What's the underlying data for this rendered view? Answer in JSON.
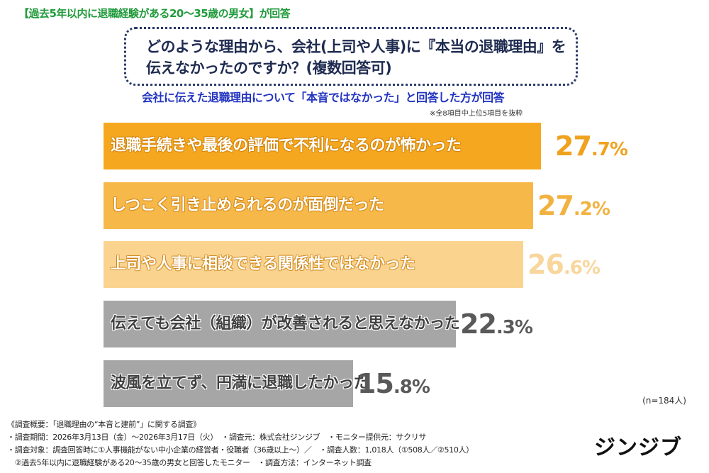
{
  "header_note": "【過去5年以内に退職経験がある20〜35歳の男女】が回答",
  "question": {
    "line1": "どのような理由から、会社(上司や人事)に『本当の退職理由』を",
    "line2": "伝えなかったのですか？(複数回答可)"
  },
  "subtitle": "会社に伝えた退職理由について「本音ではなかった」と回答した方が回答",
  "footnote_top": "※全8項目中上位5項目を抜粋",
  "n_label": "(n=184人)",
  "chart_data": {
    "type": "bar",
    "orientation": "horizontal",
    "unit": "%",
    "categories": [
      "退職手続きや最後の評価で不利になるのが怖かった",
      "しつこく引き止められるのが面倒だった",
      "上司や人事に相談できる関係性ではなかった",
      "伝えても会社（組織）が改善されると思えなかった",
      "波風を立てず、円満に退職したかった"
    ],
    "values": [
      27.7,
      27.2,
      26.6,
      22.3,
      15.8
    ],
    "value_labels": [
      {
        "int": "27",
        "dec": ".7%"
      },
      {
        "int": "27",
        "dec": ".2%"
      },
      {
        "int": "26",
        "dec": ".6%"
      },
      {
        "int": "22",
        "dec": ".3%"
      },
      {
        "int": "15",
        "dec": ".8%"
      }
    ],
    "bar_colors": [
      "#f5a71f",
      "#f7b84a",
      "#fad38f",
      "#a6a6a6",
      "#a6a6a6"
    ],
    "value_colors": [
      "#f0a21e",
      "#f2b241",
      "#f8d69c",
      "#595959",
      "#595959"
    ],
    "label_colors": [
      "#ffffff",
      "#ffffff",
      "#ffffff",
      "#404040",
      "#404040"
    ],
    "grid": false
  },
  "survey": {
    "title": "《調査概要：「退職理由の“本音と建前”」に関する調査》",
    "line1": "・調査期間：2026年3月13日（金）〜2026年3月17日（火）　・調査元：株式会社ジンジブ　・モニター提供元：サクリサ",
    "line2": "・調査対象：調査回答時に①人事機能がない中小企業の経営者・役職者（36歳以上〜）／　・調査人数：1,018人（①508人／②510人）",
    "line3": "　②過去5年以内に退職経験がある20〜35歳の男女と回答したモニター　・調査方法：インターネット調査"
  },
  "brand": "ジンジブ"
}
